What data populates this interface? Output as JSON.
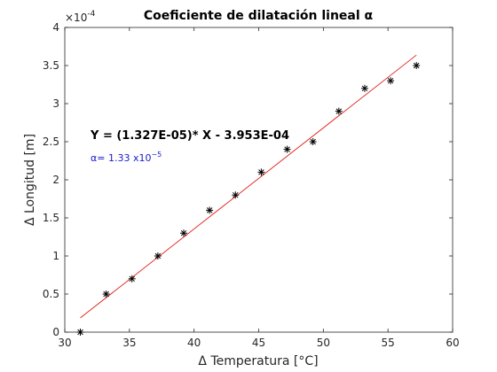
{
  "chart_data": {
    "type": "scatter",
    "title": "Coeficiente de dilatación lineal α",
    "xlabel": "Δ Temperatura [°C]",
    "ylabel": "Δ Longitud [m]",
    "xlim": [
      30,
      60
    ],
    "ylim": [
      0,
      4
    ],
    "y_exponent_label": "×10",
    "y_exponent_power": "-4",
    "x_ticks": [
      30,
      35,
      40,
      45,
      50,
      55,
      60
    ],
    "x_tick_labels": [
      "30",
      "35",
      "40",
      "45",
      "50",
      "55",
      "60"
    ],
    "y_ticks": [
      0,
      0.5,
      1,
      1.5,
      2,
      2.5,
      3,
      3.5,
      4
    ],
    "y_tick_labels": [
      "0",
      "0.5",
      "1",
      "1.5",
      "2",
      "2.5",
      "3",
      "3.5",
      "4"
    ],
    "grid": false,
    "series": [
      {
        "marker": "asterisk",
        "color": "#000000",
        "x": [
          31.2,
          33.2,
          35.2,
          37.2,
          39.2,
          41.2,
          43.2,
          45.2,
          47.2,
          49.2,
          51.2,
          53.2,
          55.2,
          57.2
        ],
        "y": [
          0.0,
          0.5,
          0.7,
          1.0,
          1.3,
          1.6,
          1.8,
          2.1,
          2.4,
          2.5,
          2.9,
          3.2,
          3.3,
          3.5
        ]
      }
    ],
    "fit_line": {
      "color": "#e0201a",
      "slope": 0.1327,
      "intercept": -3.953,
      "x_range": [
        31.2,
        57.2
      ]
    },
    "annotations": {
      "equation": "Y = (1.327E-05)* X - 3.953E-04",
      "alpha_prefix": "α= 1.33 x10",
      "alpha_power": "−5",
      "alpha_color": "#1a1acc"
    }
  }
}
